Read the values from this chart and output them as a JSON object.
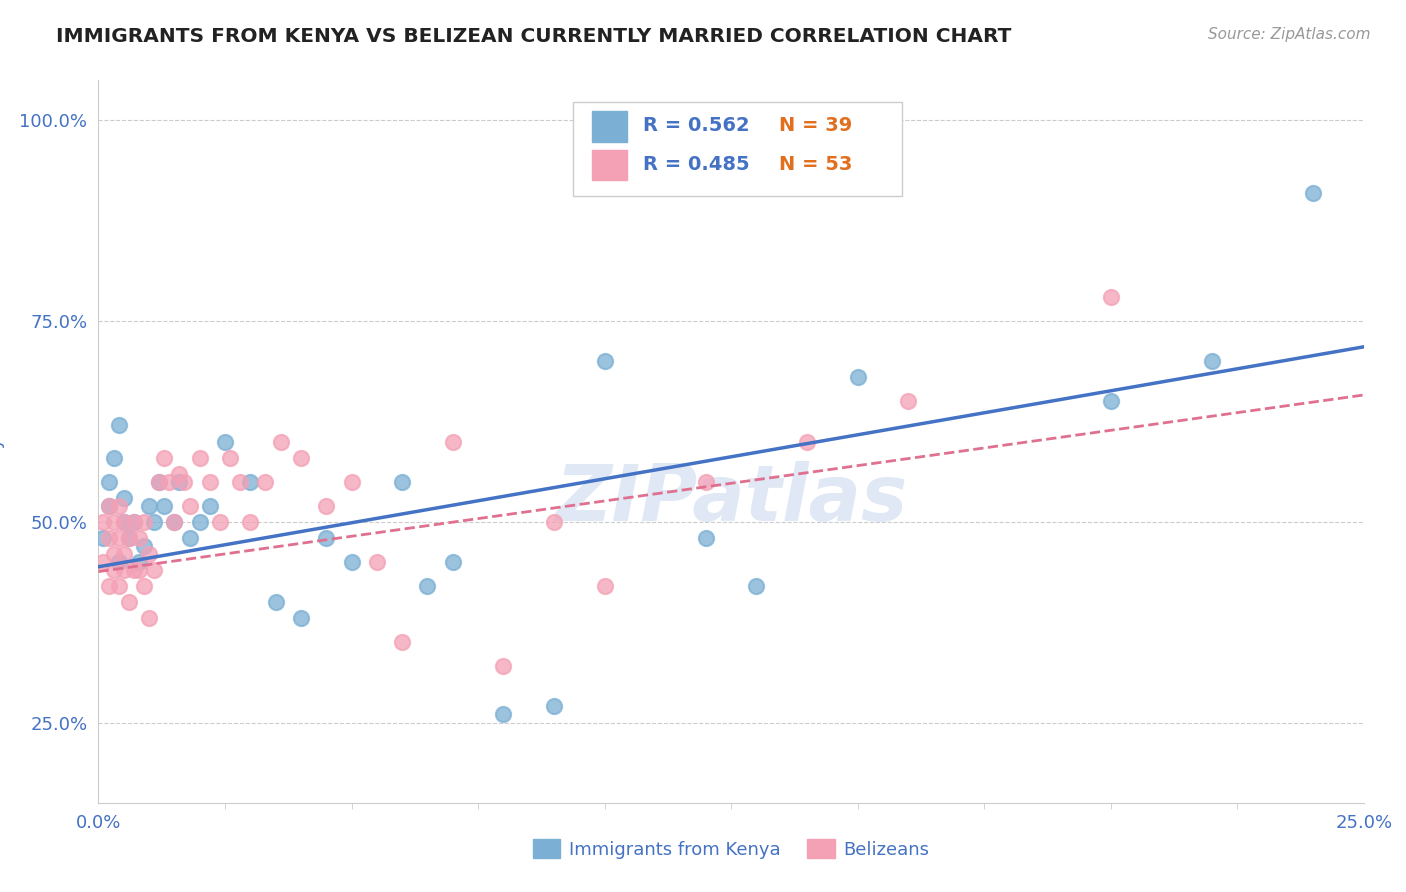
{
  "title": "IMMIGRANTS FROM KENYA VS BELIZEAN CURRENTLY MARRIED CORRELATION CHART",
  "source_text": "Source: ZipAtlas.com",
  "ylabel": "Currently Married",
  "xlim": [
    0.0,
    0.25
  ],
  "ylim": [
    0.15,
    1.05
  ],
  "xticks": [
    0.0,
    0.25
  ],
  "xticklabels": [
    "0.0%",
    "25.0%"
  ],
  "yticks": [
    0.25,
    0.5,
    0.75,
    1.0
  ],
  "yticklabels": [
    "25.0%",
    "50.0%",
    "75.0%",
    "100.0%"
  ],
  "legend_r_kenya": "R = 0.562",
  "legend_n_kenya": "N = 39",
  "legend_r_belize": "R = 0.485",
  "legend_n_belize": "N = 53",
  "series_kenya": {
    "color": "#7bafd4",
    "edge_color": "#7bafd4",
    "line_color": "#4472c4",
    "x": [
      0.001,
      0.002,
      0.002,
      0.003,
      0.004,
      0.004,
      0.005,
      0.005,
      0.006,
      0.007,
      0.008,
      0.009,
      0.01,
      0.011,
      0.012,
      0.013,
      0.015,
      0.016,
      0.018,
      0.02,
      0.022,
      0.025,
      0.03,
      0.035,
      0.04,
      0.045,
      0.05,
      0.06,
      0.065,
      0.07,
      0.08,
      0.09,
      0.1,
      0.12,
      0.13,
      0.15,
      0.2,
      0.22,
      0.24
    ],
    "y": [
      0.48,
      0.52,
      0.55,
      0.58,
      0.45,
      0.62,
      0.5,
      0.53,
      0.48,
      0.5,
      0.45,
      0.47,
      0.52,
      0.5,
      0.55,
      0.52,
      0.5,
      0.55,
      0.48,
      0.5,
      0.52,
      0.6,
      0.55,
      0.4,
      0.38,
      0.48,
      0.45,
      0.55,
      0.42,
      0.45,
      0.26,
      0.27,
      0.7,
      0.48,
      0.42,
      0.68,
      0.65,
      0.7,
      0.91
    ],
    "trend_x0": 0.0,
    "trend_y0": 0.444,
    "trend_x1": 0.25,
    "trend_y1": 0.718
  },
  "series_belize": {
    "color": "#f4a0b5",
    "edge_color": "#f4a0b5",
    "line_color": "#e07090",
    "x": [
      0.001,
      0.001,
      0.002,
      0.002,
      0.002,
      0.003,
      0.003,
      0.003,
      0.004,
      0.004,
      0.004,
      0.005,
      0.005,
      0.005,
      0.006,
      0.006,
      0.007,
      0.007,
      0.008,
      0.008,
      0.009,
      0.009,
      0.01,
      0.01,
      0.011,
      0.012,
      0.013,
      0.014,
      0.015,
      0.016,
      0.017,
      0.018,
      0.02,
      0.022,
      0.024,
      0.026,
      0.028,
      0.03,
      0.033,
      0.036,
      0.04,
      0.045,
      0.05,
      0.055,
      0.06,
      0.07,
      0.08,
      0.09,
      0.1,
      0.12,
      0.14,
      0.16,
      0.2
    ],
    "y": [
      0.5,
      0.45,
      0.48,
      0.42,
      0.52,
      0.46,
      0.5,
      0.44,
      0.48,
      0.42,
      0.52,
      0.44,
      0.5,
      0.46,
      0.4,
      0.48,
      0.44,
      0.5,
      0.44,
      0.48,
      0.42,
      0.5,
      0.46,
      0.38,
      0.44,
      0.55,
      0.58,
      0.55,
      0.5,
      0.56,
      0.55,
      0.52,
      0.58,
      0.55,
      0.5,
      0.58,
      0.55,
      0.5,
      0.55,
      0.6,
      0.58,
      0.52,
      0.55,
      0.45,
      0.35,
      0.6,
      0.32,
      0.5,
      0.42,
      0.55,
      0.6,
      0.65,
      0.78
    ],
    "trend_x0": 0.0,
    "trend_y0": 0.438,
    "trend_x1": 0.25,
    "trend_y1": 0.658
  },
  "watermark": "ZIPatlas",
  "background_color": "#ffffff",
  "grid_color": "#cccccc",
  "title_color": "#222222",
  "axis_color": "#4472c4",
  "tick_color": "#4472c4"
}
